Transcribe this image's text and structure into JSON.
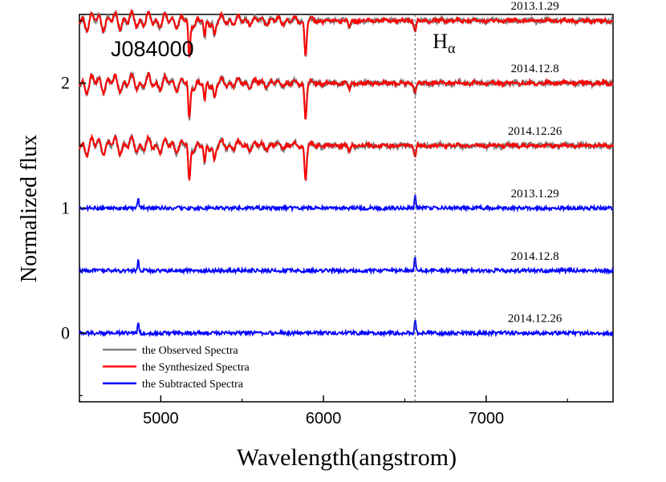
{
  "chart_data": {
    "type": "line",
    "title": "J084000",
    "xlabel": "Wavelength(angstrom)",
    "ylabel": "Normalized flux",
    "xlim": [
      4500,
      7780
    ],
    "ylim": [
      -0.55,
      2.55
    ],
    "x_ticks": [
      5000,
      6000,
      7000
    ],
    "x_tick_labels": [
      "5000",
      "6000",
      "7000"
    ],
    "y_ticks": [
      0,
      1,
      2
    ],
    "y_tick_labels": [
      "0",
      "1",
      "2"
    ],
    "grid": false,
    "marker_line": {
      "x": 6563,
      "label_main": "H",
      "label_sub": "α"
    },
    "colors": {
      "observed": "#808080",
      "synthesized": "#ff0000",
      "subtracted": "#0000ff"
    },
    "spectra": [
      {
        "date": "2013.1.29",
        "kind": "observed",
        "offset": 2.5,
        "label_y": 2.6
      },
      {
        "date": "2014.12.8",
        "kind": "observed",
        "offset": 2.0,
        "label_y": 2.1
      },
      {
        "date": "2014.12.26",
        "kind": "observed",
        "offset": 1.5,
        "label_y": 1.6
      },
      {
        "date": "2013.1.29",
        "kind": "subtracted",
        "offset": 1.0,
        "label_y": 1.1
      },
      {
        "date": "2014.12.8",
        "kind": "subtracted",
        "offset": 0.5,
        "label_y": 0.6
      },
      {
        "date": "2014.12.26",
        "kind": "subtracted",
        "offset": 0.0,
        "label_y": 0.1
      }
    ],
    "absorption_lines": [
      {
        "x": 5175,
        "depth": 0.32
      },
      {
        "x": 5270,
        "depth": 0.18
      },
      {
        "x": 5330,
        "depth": 0.12
      },
      {
        "x": 5890,
        "depth": 0.28
      },
      {
        "x": 6160,
        "depth": 0.05
      },
      {
        "x": 6563,
        "depth": 0.08
      }
    ],
    "emission_lines": [
      {
        "x": 4861,
        "height": 0.08
      },
      {
        "x": 6563,
        "height": 0.12
      }
    ],
    "legend": {
      "position": "bottom-left",
      "entries": [
        {
          "label": "the Observed Spectra",
          "color": "#808080"
        },
        {
          "label": "the Synthesized Spectra",
          "color": "#ff0000"
        },
        {
          "label": "the Subtracted Spectra",
          "color": "#0000ff"
        }
      ]
    }
  }
}
